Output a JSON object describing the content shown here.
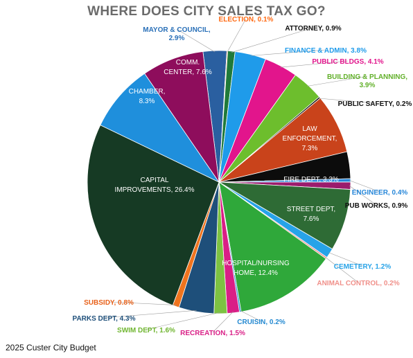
{
  "title": "WHERE DOES CITY SALES TAX GO?",
  "footer": "2025 Custer City Budget",
  "chart_data": {
    "type": "pie",
    "title": "WHERE DOES CITY SALES TAX GO?",
    "start_angle_deg": -7,
    "slices": [
      {
        "label": "MAYOR & COUNCIL",
        "value": 2.9,
        "display": "2.9%",
        "color": "#2a5fa0"
      },
      {
        "label": "ELECTION",
        "value": 0.1,
        "display": "0.1%",
        "color": "#ff6a13"
      },
      {
        "label": "ATTORNEY",
        "value": 0.9,
        "display": "0.9%",
        "color": "#1f7a3a"
      },
      {
        "label": "FINANCE & ADMIN",
        "value": 3.8,
        "display": "3.8%",
        "color": "#1f9bea"
      },
      {
        "label": "PUBLIC BLDGS",
        "value": 4.1,
        "display": "4.1%",
        "color": "#e2158c"
      },
      {
        "label": "BUILDING & PLANNING",
        "value": 3.9,
        "display": "3.9%",
        "color": "#6dbe2d"
      },
      {
        "label": "PUBLIC SAFETY",
        "value": 0.2,
        "display": "0.2%",
        "color": "#111111"
      },
      {
        "label": "LAW ENFORCEMENT",
        "value": 7.3,
        "display": "7.3%",
        "color": "#c9431b"
      },
      {
        "label": "FIRE DEPT",
        "value": 3.3,
        "display": "3.3%",
        "color": "#0c0c0c"
      },
      {
        "label": "ENGINEER",
        "value": 0.4,
        "display": "0.4%",
        "color": "#2787d9"
      },
      {
        "label": "PUB WORKS",
        "value": 0.9,
        "display": "0.9%",
        "color": "#9b1b6c"
      },
      {
        "label": "STREET DEPT",
        "value": 7.6,
        "display": "7.6%",
        "color": "#2e6b35"
      },
      {
        "label": "CEMETERY",
        "value": 1.2,
        "display": "1.2%",
        "color": "#27a3e8"
      },
      {
        "label": "ANIMAL CONTROL",
        "value": 0.2,
        "display": "0.2%",
        "color": "#f0908a"
      },
      {
        "label": "HOSPITAL/NURSING HOME",
        "value": 12.4,
        "display": "12.4%",
        "color": "#2fa83a"
      },
      {
        "label": "CRUISIN",
        "value": 0.2,
        "display": "0.2%",
        "color": "#2489d1"
      },
      {
        "label": "RECREATION",
        "value": 1.5,
        "display": "1.5%",
        "color": "#d91f86"
      },
      {
        "label": "SWIM DEPT",
        "value": 1.6,
        "display": "1.6%",
        "color": "#7dc242"
      },
      {
        "label": "PARKS DEPT",
        "value": 4.3,
        "display": "4.3%",
        "color": "#1e4f7a"
      },
      {
        "label": "SUBSIDY",
        "value": 0.8,
        "display": "0.8%",
        "color": "#f0741e"
      },
      {
        "label": "CAPITAL IMPROVEMENTS",
        "value": 26.4,
        "display": "26.4%",
        "color": "#163a24"
      },
      {
        "label": "CHAMBER",
        "value": 8.3,
        "display": "8.3%",
        "color": "#1f8fdc"
      },
      {
        "label": "COMM. CENTER",
        "value": 7.6,
        "display": "7.6%",
        "color": "#8e0d5c"
      }
    ],
    "outside_labels": [
      {
        "slice": "MAYOR & COUNCIL",
        "lines": [
          "MAYOR & COUNCIL,",
          "2.9%"
        ],
        "color": "#2a70b8"
      },
      {
        "slice": "ELECTION",
        "lines": [
          "ELECTION, 0.1%"
        ],
        "color": "#ff6a13"
      },
      {
        "slice": "ATTORNEY",
        "lines": [
          "ATTORNEY, 0.9%"
        ],
        "color": "#111111"
      },
      {
        "slice": "FINANCE & ADMIN",
        "lines": [
          "FINANCE & ADMIN, 3.8%"
        ],
        "color": "#1f9bea"
      },
      {
        "slice": "PUBLIC BLDGS",
        "lines": [
          "PUBLIC BLDGS, 4.1%"
        ],
        "color": "#e2158c"
      },
      {
        "slice": "BUILDING & PLANNING",
        "lines": [
          "BUILDING & PLANNING,",
          "3.9%"
        ],
        "color": "#62b02a"
      },
      {
        "slice": "PUBLIC SAFETY",
        "lines": [
          "PUBLIC SAFETY, 0.2%"
        ],
        "color": "#111111"
      },
      {
        "slice": "ENGINEER",
        "lines": [
          "ENGINEER, 0.4%"
        ],
        "color": "#2787d9"
      },
      {
        "slice": "PUB WORKS",
        "lines": [
          "PUB WORKS, 0.9%"
        ],
        "color": "#111111"
      },
      {
        "slice": "CEMETERY",
        "lines": [
          "CEMETERY, 1.2%"
        ],
        "color": "#27a3e8"
      },
      {
        "slice": "ANIMAL CONTROL",
        "lines": [
          "ANIMAL CONTROL, 0.2%"
        ],
        "color": "#f0908a"
      },
      {
        "slice": "CRUISIN",
        "lines": [
          "CRUISIN, 0.2%"
        ],
        "color": "#2489d1"
      },
      {
        "slice": "RECREATION",
        "lines": [
          "RECREATION, 1.5%"
        ],
        "color": "#d91f86"
      },
      {
        "slice": "SWIM DEPT",
        "lines": [
          "SWIM DEPT, 1.6%"
        ],
        "color": "#6fb52f"
      },
      {
        "slice": "PARKS DEPT",
        "lines": [
          "PARKS DEPT, 4.3%"
        ],
        "color": "#1e4f7a"
      },
      {
        "slice": "SUBSIDY",
        "lines": [
          "SUBSIDY, 0.8%"
        ],
        "color": "#e8611a"
      }
    ],
    "inside_labels": [
      {
        "slice": "LAW ENFORCEMENT",
        "lines": [
          "LAW",
          "ENFORCEMENT,",
          "7.3%"
        ]
      },
      {
        "slice": "FIRE DEPT",
        "lines": [
          "FIRE DEPT, 3.3%"
        ]
      },
      {
        "slice": "STREET DEPT",
        "lines": [
          "STREET DEPT,",
          "7.6%"
        ]
      },
      {
        "slice": "HOSPITAL/NURSING HOME",
        "lines": [
          "HOSPITAL/NURSING",
          "HOME, 12.4%"
        ]
      },
      {
        "slice": "CAPITAL IMPROVEMENTS",
        "lines": [
          "CAPITAL",
          "IMPROVEMENTS, 26.4%"
        ]
      },
      {
        "slice": "CHAMBER",
        "lines": [
          "CHAMBER,",
          "8.3%"
        ]
      },
      {
        "slice": "COMM. CENTER",
        "lines": [
          "COMM.",
          "CENTER, 7.6%"
        ]
      }
    ]
  }
}
